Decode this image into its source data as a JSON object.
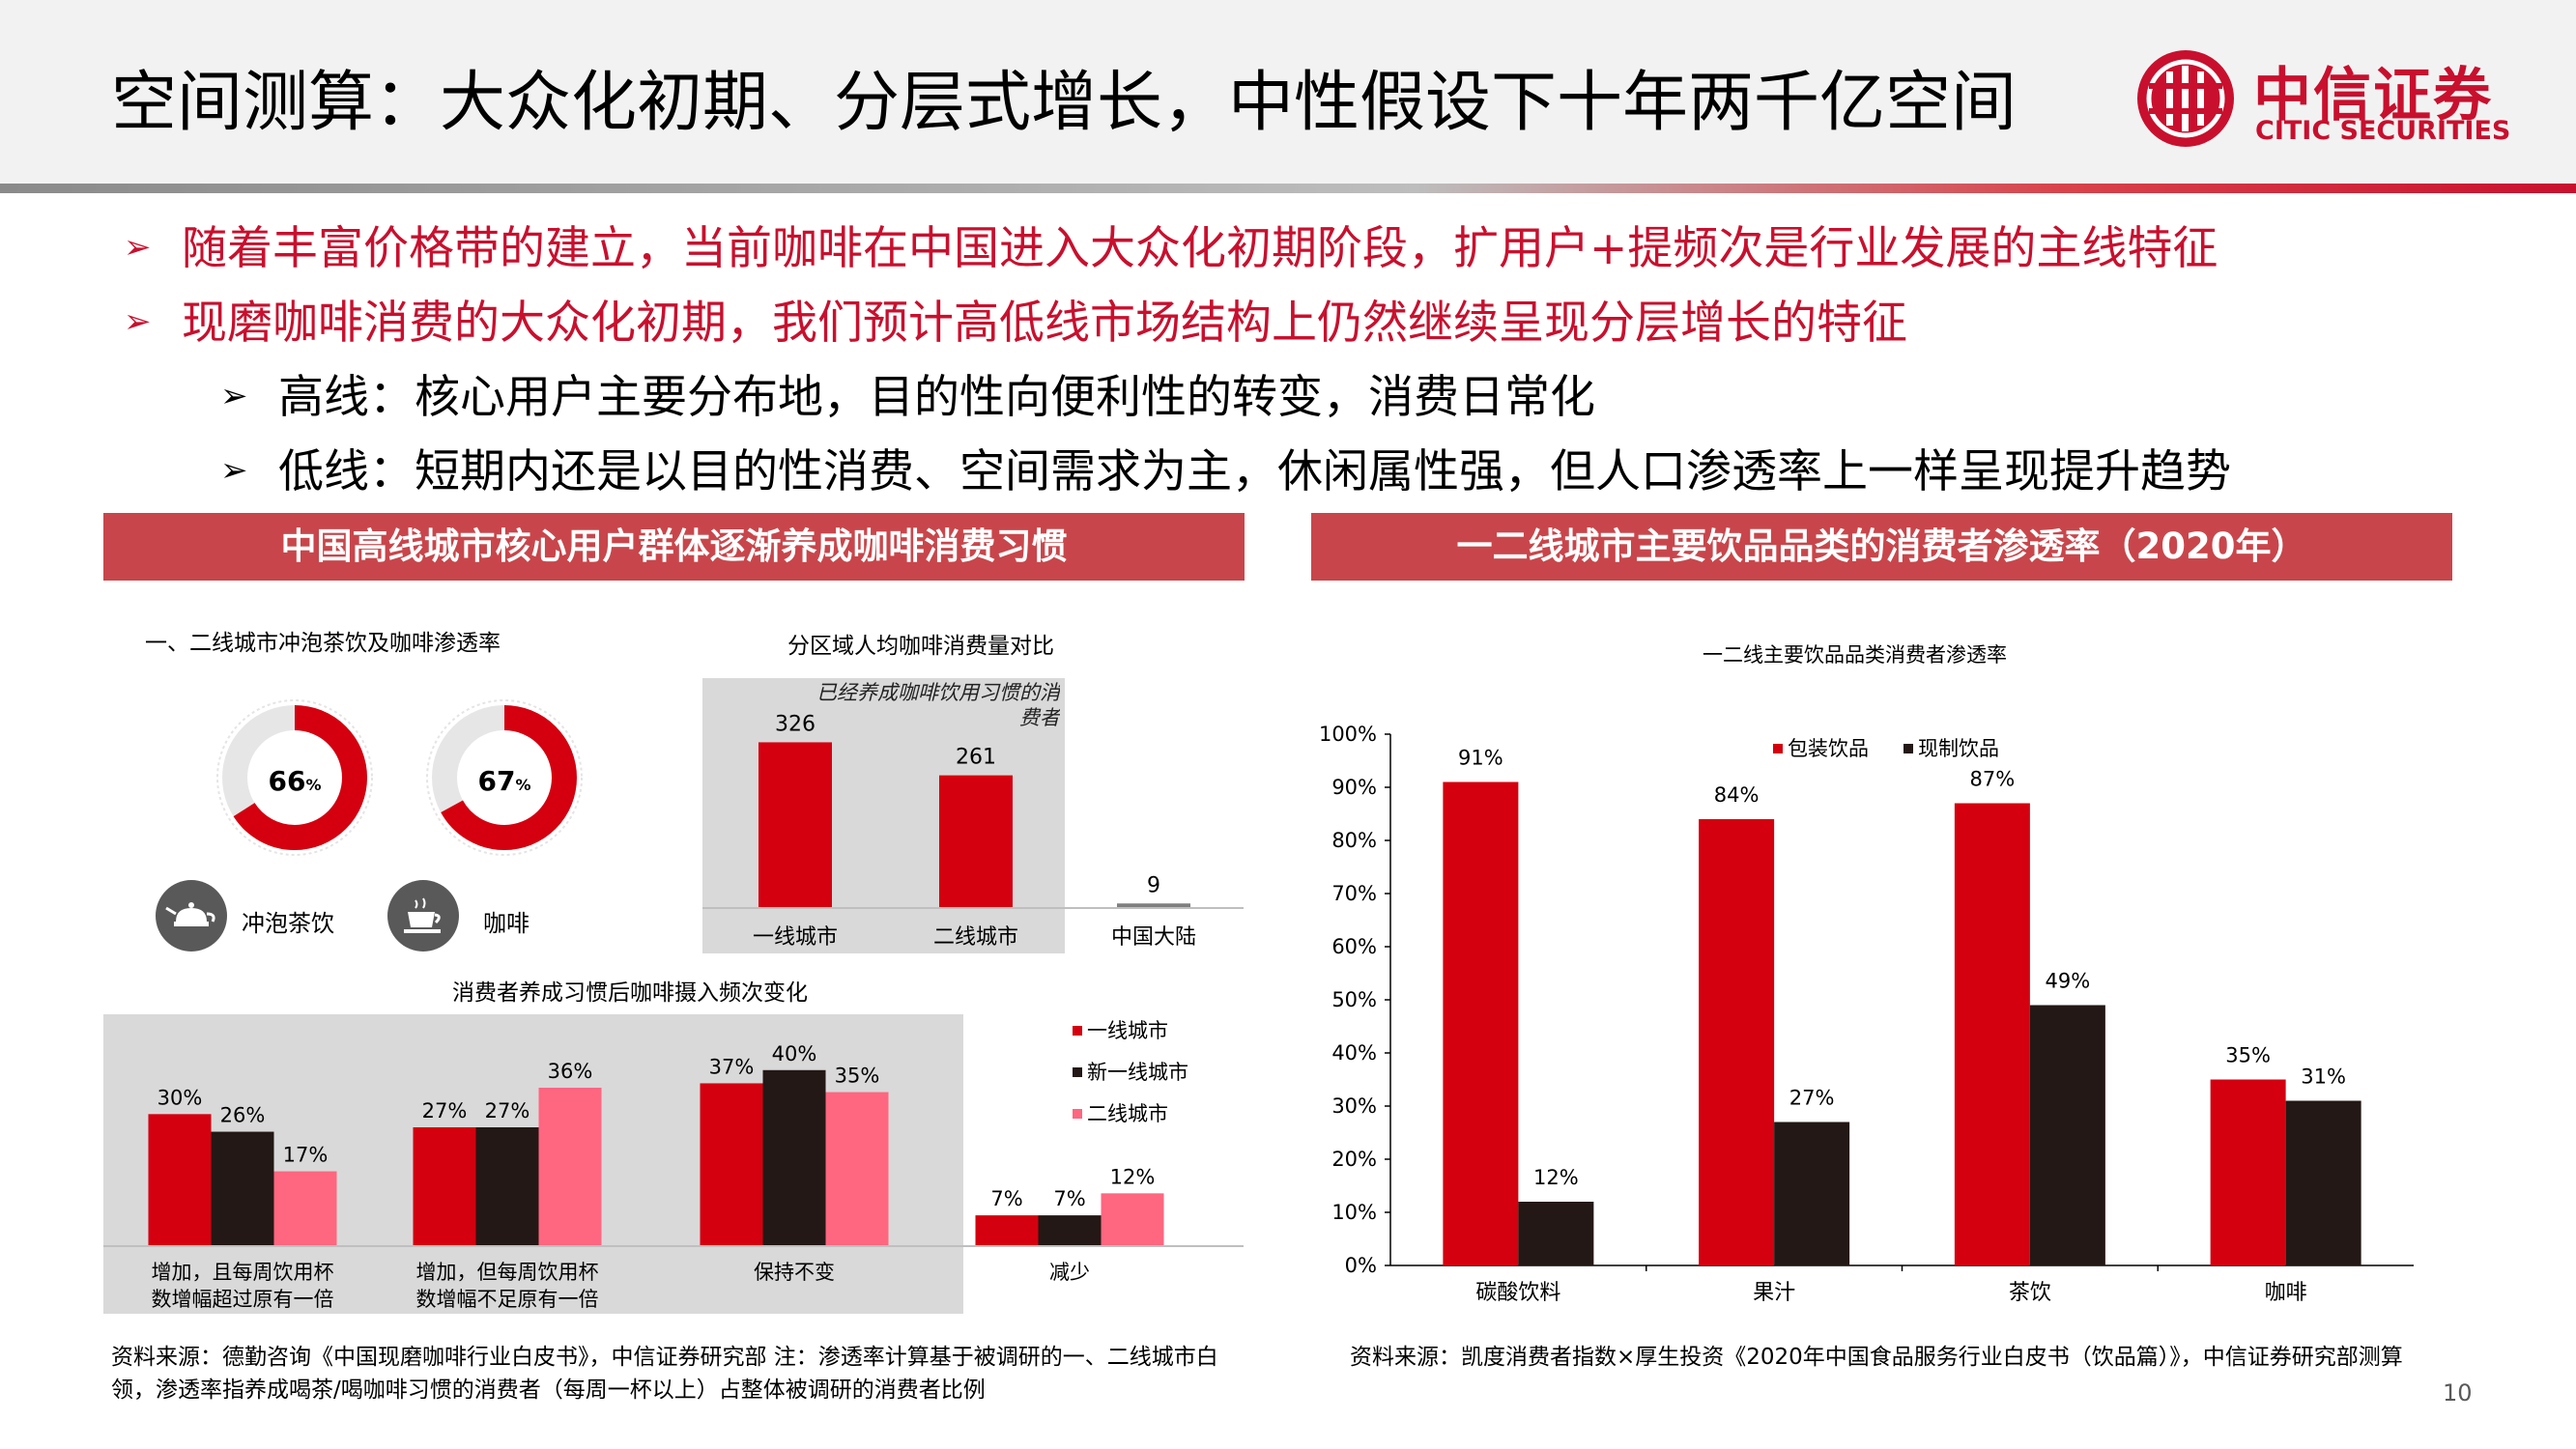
{
  "header": {
    "title": "空间测算：大众化初期、分层式增长，中性假设下十年两千亿空间",
    "logo_name": "中信证券",
    "logo_en": "CITIC SECURITIES"
  },
  "bullets": [
    {
      "text": "随着丰富价格带的建立，当前咖啡在中国进入大众化初期阶段，扩用户+提频次是行业发展的主线特征"
    },
    {
      "text": "现磨咖啡消费的大众化初期，我们预计高低线市场结构上仍然继续呈现分层增长的特征"
    },
    {
      "text": "高线：核心用户主要分布地，目的性向便利性的转变，消费日常化"
    },
    {
      "text": "低线：短期内还是以目的性消费、空间需求为主，休闲属性强，但人口渗透率上一样呈现提升趋势"
    }
  ],
  "arrow_glyph": "➢",
  "left_panel": {
    "header": "中国高线城市核心用户群体逐渐养成咖啡消费习惯",
    "source": "资料来源：德勤咨询《中国现磨咖啡行业白皮书》，中信证券研究部 注：渗透率计算基于被调研的一、二线城市白领，渗透率指养成喝茶/喝咖啡习惯的消费者（每周一杯以上）占整体被调研的消费者比例"
  },
  "right_panel": {
    "header": "一二线城市主要饮品品类的消费者渗透率（2020年）",
    "source": "资料来源：凯度消费者指数×厚生投资《2020年中国食品服务行业白皮书（饮品篇）》，中信证券研究部测算"
  },
  "page_number": "10",
  "colors": {
    "red": "#d4000f",
    "black": "#231815",
    "pink": "#ff6680",
    "header_red": "#c8464b"
  },
  "chart_data": [
    {
      "type": "pie",
      "title": "一、二线城市冲泡茶饮及咖啡渗透率",
      "items": [
        {
          "label": "冲泡茶饮",
          "value": 66,
          "display": "66",
          "unit": "%",
          "icon": "teapot-icon"
        },
        {
          "label": "咖啡",
          "value": 67,
          "display": "67",
          "unit": "%",
          "icon": "coffee-cup-icon"
        }
      ]
    },
    {
      "type": "bar",
      "title": "分区域人均咖啡消费量对比",
      "annotation": "已经养成咖啡饮用习惯的消费者",
      "categories": [
        "一线城市",
        "二线城市",
        "中国大陆"
      ],
      "values": [
        326,
        261,
        9
      ],
      "ylim": [
        0,
        380
      ]
    },
    {
      "type": "bar",
      "title": "消费者养成习惯后咖啡摄入频次变化",
      "categories": [
        "增加，且每周饮用杯数增幅超过原有一倍",
        "增加，但每周饮用杯数增幅不足原有一倍",
        "保持不变",
        "减少"
      ],
      "series": [
        {
          "name": "一线城市",
          "values": [
            30,
            27,
            37,
            7
          ]
        },
        {
          "name": "新一线城市",
          "values": [
            26,
            27,
            40,
            7
          ]
        },
        {
          "name": "二线城市",
          "values": [
            17,
            36,
            35,
            12
          ]
        }
      ],
      "unit": "%",
      "ylim": [
        0,
        45
      ],
      "legend": "right"
    },
    {
      "type": "bar",
      "title": "一二线主要饮品品类消费者渗透率",
      "categories": [
        "碳酸饮料",
        "果汁",
        "茶饮",
        "咖啡"
      ],
      "series": [
        {
          "name": "包装饮品",
          "values": [
            91,
            84,
            87,
            35
          ]
        },
        {
          "name": "现制饮品",
          "values": [
            12,
            27,
            49,
            31
          ]
        }
      ],
      "yticks": [
        "0%",
        "10%",
        "20%",
        "30%",
        "40%",
        "50%",
        "60%",
        "70%",
        "80%",
        "90%",
        "100%"
      ],
      "ylim": [
        0,
        100
      ],
      "unit": "%",
      "legend": "top"
    }
  ]
}
